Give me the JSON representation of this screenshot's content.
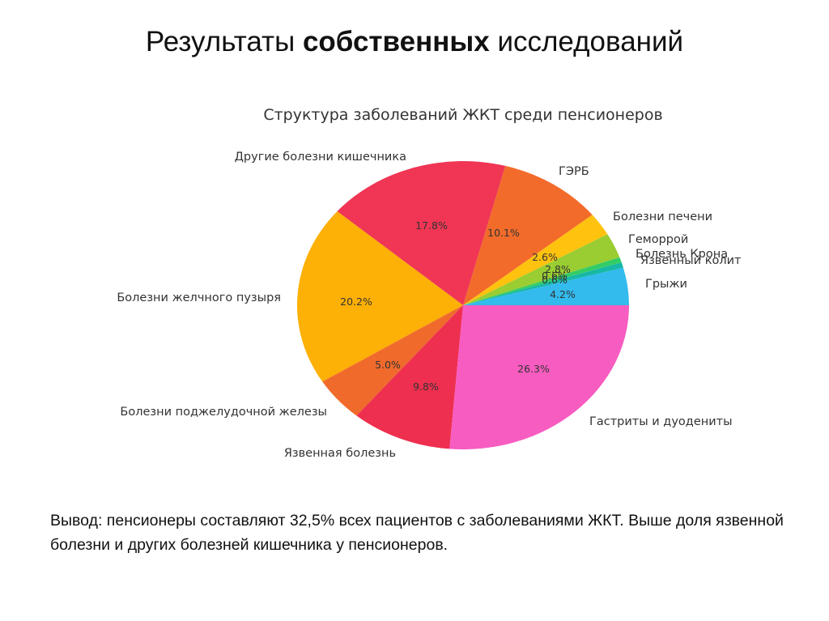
{
  "slide": {
    "title_part1": "Результаты ",
    "title_bold": "собственных",
    "title_part2": " исследований",
    "conclusion": "Вывод: пенсионеры составляют 32,5% всех пациентов с заболеваниями ЖКТ. Выше доля язвенной болезни и других болезней кишечника у пенсионеров."
  },
  "chart_data": {
    "type": "pie",
    "title": "Структура заболеваний ЖКТ среди пенсионеров",
    "slices": [
      {
        "label": "Грыжи",
        "value": 4.2,
        "pct_text": "4.2%",
        "color": "#33bbee"
      },
      {
        "label": "Язвенный колит",
        "value": 0.6,
        "pct_text": "0.6%",
        "color": "#17b8a6"
      },
      {
        "label": "Болезнь Крона",
        "value": 0.6,
        "pct_text": "0.6%",
        "color": "#33cc66"
      },
      {
        "label": "Геморрой",
        "value": 2.8,
        "pct_text": "2.8%",
        "color": "#9acd32"
      },
      {
        "label": "Болезни печени",
        "value": 2.6,
        "pct_text": "2.6%",
        "color": "#ffc20e"
      },
      {
        "label": "ГЭРБ",
        "value": 10.1,
        "pct_text": "10.1%",
        "color": "#f26b2a"
      },
      {
        "label": "Другие болезни кишечника",
        "value": 17.8,
        "pct_text": "17.8%",
        "color": "#f03654"
      },
      {
        "label": "Болезни желчного пузыря",
        "value": 20.2,
        "pct_text": "20.2%",
        "color": "#fdb006"
      },
      {
        "label": "Болезни поджелудочной железы",
        "value": 5.0,
        "pct_text": "5.0%",
        "color": "#f06a2c"
      },
      {
        "label": "Язвенная болезнь",
        "value": 9.8,
        "pct_text": "9.8%",
        "color": "#ee2f4f"
      },
      {
        "label": "Гастриты и дуодениты",
        "value": 26.3,
        "pct_text": "26.3%",
        "color": "#f75cc0"
      }
    ],
    "start_angle_deg": 0,
    "direction": "counterclockwise"
  }
}
